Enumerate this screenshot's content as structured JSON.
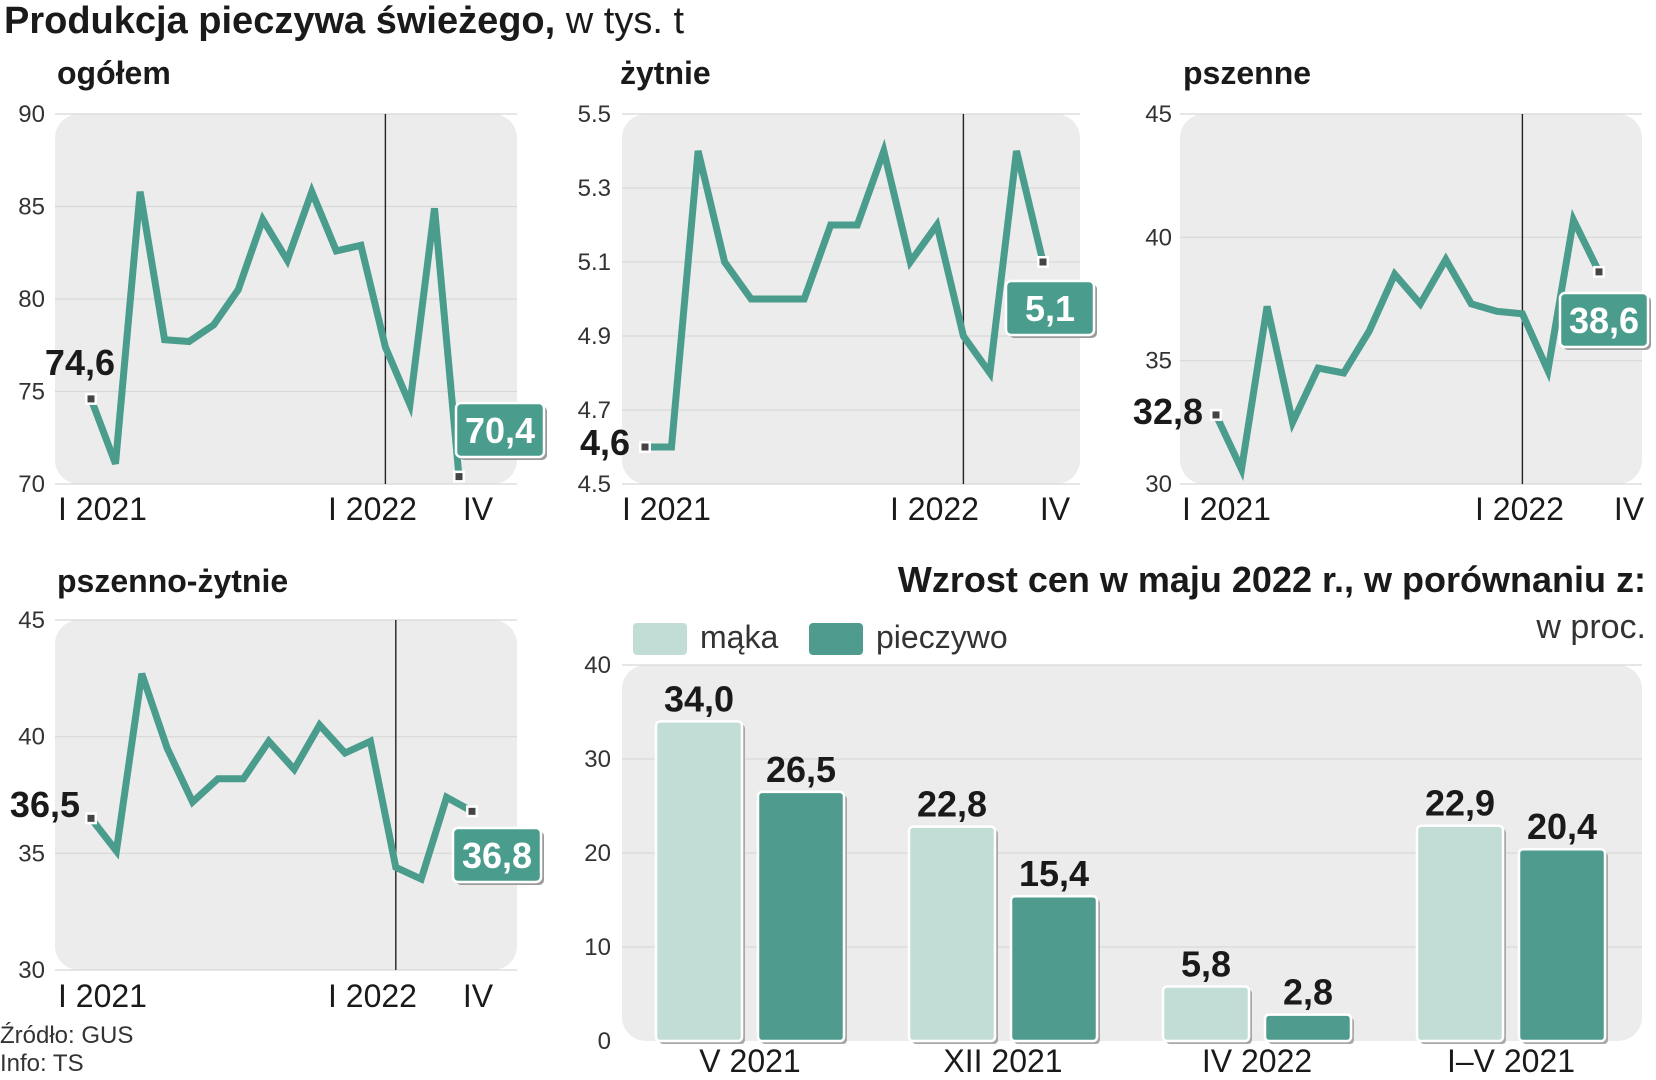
{
  "title": "Produkcja pieczywa świeżego,",
  "title_unit": "w tys. t",
  "source_label": "Źródło: GUS",
  "info_label": "Info: TS",
  "colors": {
    "line": "#4a9c8c",
    "panel": "#ececec",
    "bar_maka": "#c2dcd6",
    "bar_pieczywo": "#4f9c8e",
    "badge": "#4a9c8c",
    "text": "#1a1a1a"
  },
  "chart_data": [
    {
      "type": "line",
      "title": "ogółem",
      "ylim": [
        70,
        90
      ],
      "yticks": [
        "90",
        "85",
        "80",
        "75",
        "70"
      ],
      "ytick_values": [
        90,
        85,
        80,
        75,
        70
      ],
      "xlabels": [
        "I 2021",
        "I 2022",
        "IV"
      ],
      "xlabel_index": [
        0,
        12,
        15
      ],
      "divider_index": 12,
      "values": [
        74.6,
        71.1,
        85.8,
        77.8,
        77.7,
        78.6,
        80.5,
        84.3,
        82.1,
        85.8,
        82.6,
        82.9,
        77.4,
        74.3,
        84.9,
        70.4
      ],
      "start_label": "74,6",
      "end_label": "70,4"
    },
    {
      "type": "line",
      "title": "żytnie",
      "ylim": [
        4.5,
        5.5
      ],
      "yticks": [
        "5.5",
        "5.3",
        "5.1",
        "4.9",
        "4.7",
        "4.5"
      ],
      "ytick_values": [
        5.5,
        5.3,
        5.1,
        4.9,
        4.7,
        4.5
      ],
      "xlabels": [
        "I 2021",
        "I 2022",
        "IV"
      ],
      "xlabel_index": [
        0,
        12,
        15
      ],
      "divider_index": 12,
      "values": [
        4.6,
        4.6,
        5.4,
        5.1,
        5.0,
        5.0,
        5.0,
        5.2,
        5.2,
        5.4,
        5.1,
        5.2,
        4.9,
        4.8,
        5.4,
        5.1
      ],
      "start_label": "4,6",
      "end_label": "5,1"
    },
    {
      "type": "line",
      "title": "pszenne",
      "ylim": [
        30,
        45
      ],
      "yticks": [
        "45",
        "40",
        "35",
        "30"
      ],
      "ytick_values": [
        45,
        40,
        35,
        30
      ],
      "xlabels": [
        "I 2021",
        "I 2022",
        "IV"
      ],
      "xlabel_index": [
        0,
        12,
        15
      ],
      "divider_index": 12,
      "values": [
        32.8,
        30.6,
        37.2,
        32.5,
        34.7,
        34.5,
        36.2,
        38.5,
        37.3,
        39.1,
        37.3,
        37.0,
        36.9,
        34.6,
        40.7,
        38.6
      ],
      "start_label": "32,8",
      "end_label": "38,6"
    },
    {
      "type": "line",
      "title": "pszenno-żytnie",
      "ylim": [
        30,
        45
      ],
      "yticks": [
        "45",
        "40",
        "35",
        "30"
      ],
      "ytick_values": [
        45,
        40,
        35,
        30
      ],
      "xlabels": [
        "I 2021",
        "I 2022",
        "IV"
      ],
      "xlabel_index": [
        0,
        12,
        15
      ],
      "divider_index": 12,
      "values": [
        36.5,
        35.1,
        42.7,
        39.5,
        37.2,
        38.2,
        38.2,
        39.8,
        38.6,
        40.5,
        39.3,
        39.8,
        34.4,
        33.9,
        37.4,
        36.8
      ],
      "start_label": "36,5",
      "end_label": "36,8"
    },
    {
      "type": "bar",
      "title": "Wzrost cen w maju 2022 r., w porównaniu z:",
      "unit": "w proc.",
      "ylim": [
        0,
        40
      ],
      "yticks": [
        "40",
        "30",
        "20",
        "10",
        "0"
      ],
      "ytick_values": [
        40,
        30,
        20,
        10,
        0
      ],
      "categories": [
        "V 2021",
        "XII 2021",
        "IV 2022",
        "I–V 2021"
      ],
      "series": [
        {
          "name": "mąka",
          "values": [
            34.0,
            22.8,
            5.8,
            22.9
          ],
          "labels": [
            "34,0",
            "22,8",
            "5,8",
            "22,9"
          ]
        },
        {
          "name": "pieczywo",
          "values": [
            26.5,
            15.4,
            2.8,
            20.4
          ],
          "labels": [
            "26,5",
            "15,4",
            "2,8",
            "20,4"
          ]
        }
      ]
    }
  ]
}
